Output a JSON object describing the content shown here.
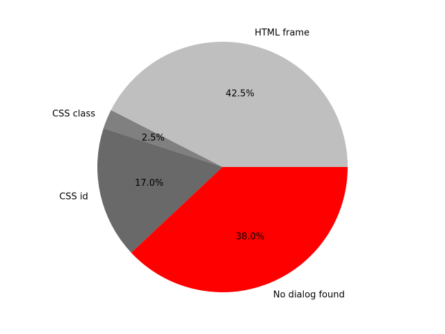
{
  "chart_data": {
    "type": "pie",
    "title": "",
    "slices": [
      {
        "label": "HTML frame",
        "value": 42.5,
        "pct_label": "42.5%",
        "color": "#bfbfbf"
      },
      {
        "label": "CSS class",
        "value": 2.5,
        "pct_label": "2.5%",
        "color": "#808080"
      },
      {
        "label": "CSS id",
        "value": 17.0,
        "pct_label": "17.0%",
        "color": "#696969"
      },
      {
        "label": "No dialog found",
        "value": 38.0,
        "pct_label": "38.0%",
        "color": "#ff0000"
      }
    ],
    "start_angle_deg": 0,
    "direction": "counterclockwise",
    "legend": "none"
  }
}
